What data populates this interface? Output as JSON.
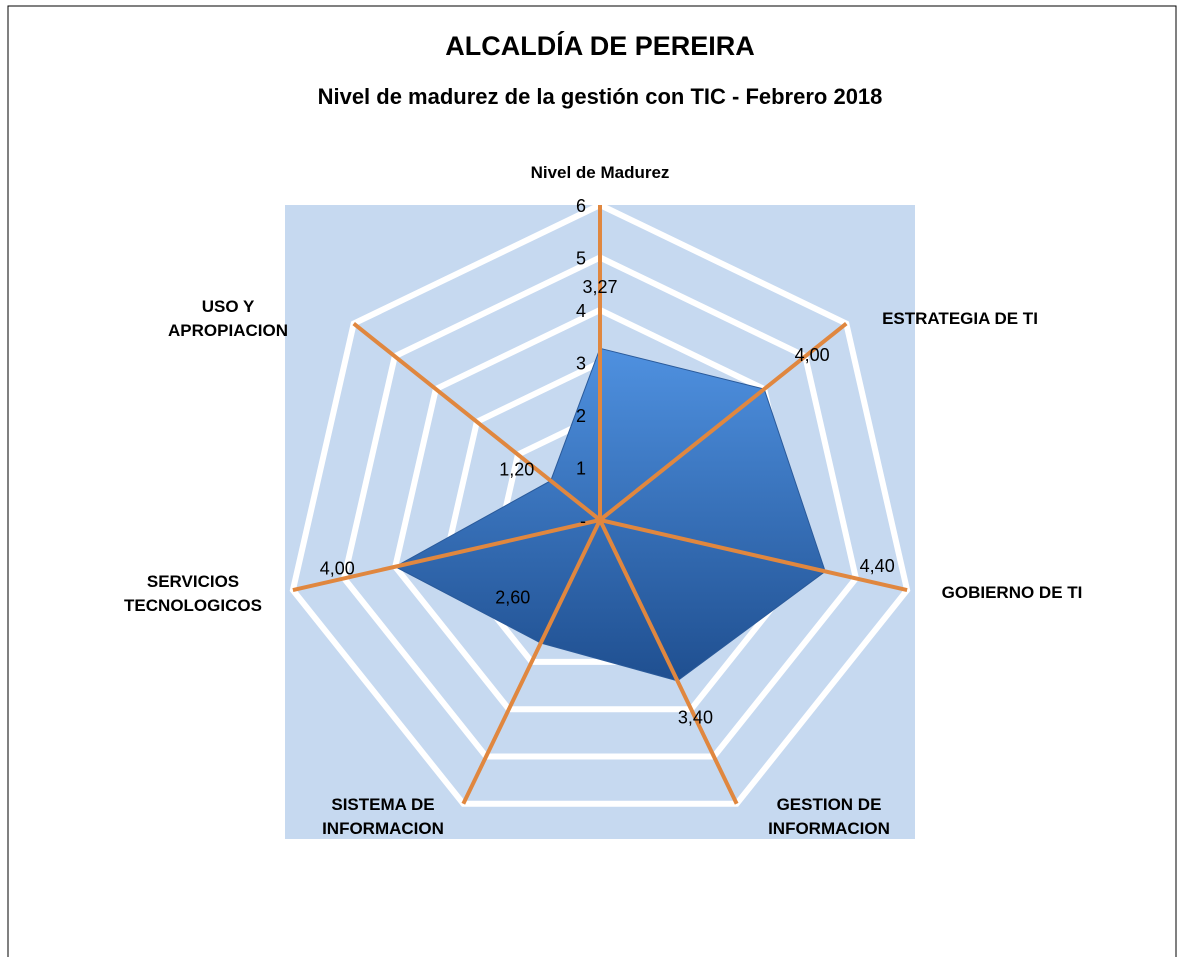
{
  "chart_data": {
    "type": "radar",
    "title": "ALCALDÍA DE PEREIRA",
    "subtitle": "Nivel de madurez de la gestión con TIC - Febrero 2018",
    "categories": [
      "Nivel de Madurez",
      "ESTRATEGIA DE TI",
      "GOBIERNO DE TI",
      "GESTION DE INFORMACION",
      "SISTEMA DE INFORMACION",
      "SERVICIOS TECNOLOGICOS",
      "USO Y APROPIACION"
    ],
    "values": [
      3.27,
      4.0,
      4.4,
      3.4,
      2.6,
      4.0,
      1.2
    ],
    "value_labels": [
      "3,27",
      "4,00",
      "4,40",
      "3,40",
      "2,60",
      "4,00",
      "1,20"
    ],
    "color": "#3a78c8",
    "ylim": [
      0,
      6
    ],
    "yticks": [
      {
        "value": 0,
        "label": "-"
      },
      1,
      2,
      3,
      4,
      5,
      6
    ],
    "grid": true
  }
}
